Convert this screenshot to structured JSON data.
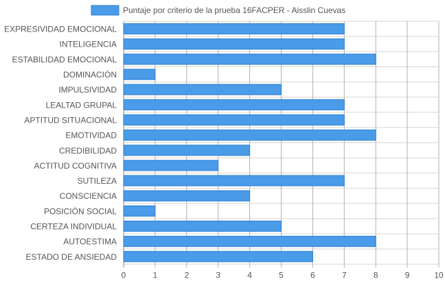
{
  "chart_data": {
    "type": "bar",
    "orientation": "horizontal",
    "categories": [
      "EXPRESIVIDAD EMOCIONAL",
      "INTELIGENCIA",
      "ESTABILIDAD EMOCIONAL",
      "DOMINACIÓN",
      "IMPULSIVIDAD",
      "LEALTAD GRUPAL",
      "APTITUD SITUACIONAL",
      "EMOTIVIDAD",
      "CREDIBILIDAD",
      "ACTITUD COGNITIVA",
      "SUTILEZA",
      "CONSCIENCIA",
      "POSICIÓN SOCIAL",
      "CERTEZA INDIVIDUAL",
      "AUTOESTIMA",
      "ESTADO DE ANSIEDAD"
    ],
    "series": [
      {
        "name": "Puntaje por criterio de la prueba 16FACPER - Aisslin Cuevas",
        "values": [
          7,
          7,
          8,
          1,
          5,
          7,
          7,
          8,
          4,
          3,
          7,
          4,
          1,
          5,
          8,
          6
        ]
      }
    ],
    "xlim": [
      0,
      10
    ],
    "xticks": [
      "0",
      "1",
      "2",
      "3",
      "4",
      "5",
      "6",
      "7",
      "8",
      "9",
      "10"
    ],
    "grid": true,
    "legend_position": "top",
    "colors": {
      "bar_fill": "#4a9be8",
      "bar_stroke": "#2a7fd4",
      "grid": "#d6d6d6",
      "grid_dark": "#b0b0b0",
      "text": "#555555"
    }
  }
}
